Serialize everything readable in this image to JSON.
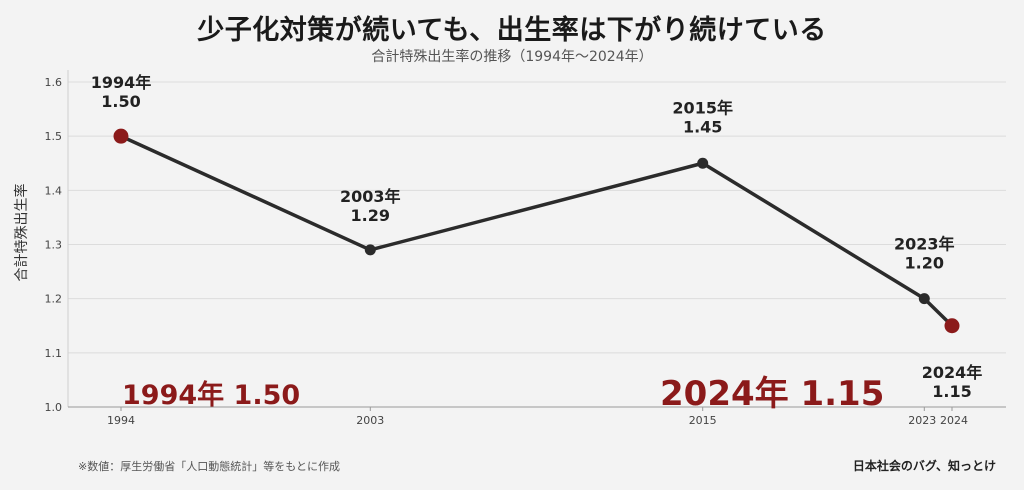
{
  "title": "少子化対策が続いても、出生率は下がり続けている",
  "subtitle": "合計特殊出生率の推移（1994年〜2024年）",
  "footnote": "※数値：厚生労働省「人口動態統計」等をもとに作成",
  "credit": "日本社会のバグ、知っとけ",
  "colors": {
    "line": "#2b2b2b",
    "highlight": "#8b1a1a",
    "grid": "#dcdcdc",
    "background": "#f3f3f3"
  },
  "chart_data": {
    "type": "line",
    "ylabel": "合計特殊出生率",
    "ylim": [
      1.0,
      1.6
    ],
    "yticks": [
      "1.0",
      "1.1",
      "1.2",
      "1.3",
      "1.4",
      "1.5",
      "1.6"
    ],
    "xlim": [
      1994,
      2024
    ],
    "xticks": [
      "1994",
      "2003",
      "2015",
      "2023",
      "2024"
    ],
    "grid": true,
    "points": [
      {
        "x": 1994,
        "y": 1.5,
        "year_label": "1994年",
        "value_label": "1.50",
        "highlight": true
      },
      {
        "x": 2003,
        "y": 1.29,
        "year_label": "2003年",
        "value_label": "1.29",
        "highlight": false
      },
      {
        "x": 2015,
        "y": 1.45,
        "year_label": "2015年",
        "value_label": "1.45",
        "highlight": false
      },
      {
        "x": 2023,
        "y": 1.2,
        "year_label": "2023年",
        "value_label": "1.20",
        "highlight": false
      },
      {
        "x": 2024,
        "y": 1.15,
        "year_label": "2024年",
        "value_label": "1.15",
        "highlight": true
      }
    ],
    "annotations": [
      {
        "text": "1994年 1.50",
        "x": 1994
      },
      {
        "text": "2024年 1.15",
        "x": 2015
      }
    ]
  }
}
